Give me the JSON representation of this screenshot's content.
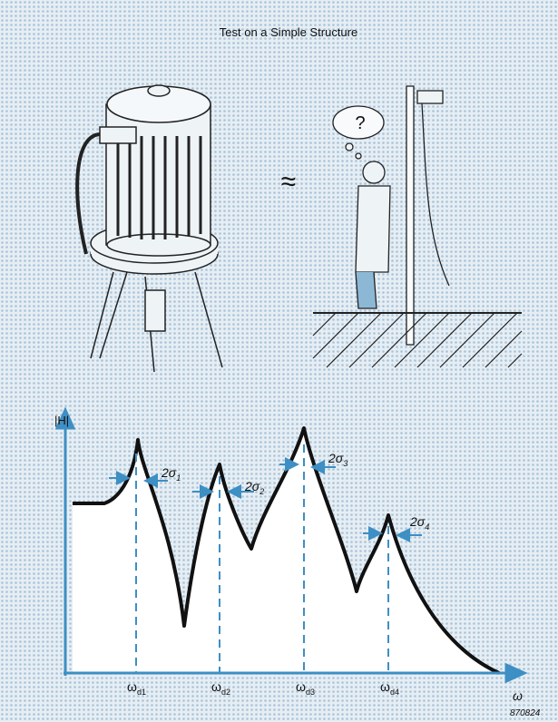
{
  "header": {
    "title": "Test on a Simple Structure"
  },
  "illustration": {
    "approx": "≈",
    "thought": "?"
  },
  "graph": {
    "y_label": "|H|",
    "x_label": "ω",
    "peaks": [
      {
        "symbol": "ω",
        "sub": "d1",
        "width_label": "2σ",
        "width_sub": "1"
      },
      {
        "symbol": "ω",
        "sub": "d2",
        "width_label": "2σ",
        "width_sub": "2"
      },
      {
        "symbol": "ω",
        "sub": "d3",
        "width_label": "2σ",
        "width_sub": "3"
      },
      {
        "symbol": "ω",
        "sub": "d4",
        "width_label": "2σ",
        "width_sub": "4"
      }
    ]
  },
  "footer": {
    "code": "870824"
  }
}
